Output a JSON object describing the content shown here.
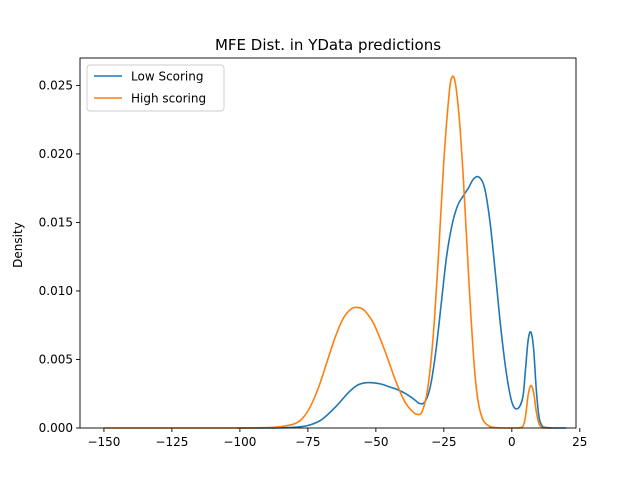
{
  "chart_data": {
    "type": "line",
    "title": "MFE Dist. in YData predictions",
    "xlabel": "",
    "ylabel": "Density",
    "xlim": [
      -158.8,
      23.6
    ],
    "ylim": [
      0.0,
      0.027
    ],
    "xticks": [
      -150,
      -125,
      -100,
      -75,
      -50,
      -25,
      0,
      25
    ],
    "xtick_labels": [
      "−150",
      "−125",
      "−100",
      "−75",
      "−50",
      "−25",
      "0",
      "25"
    ],
    "yticks": [
      0.0,
      0.005,
      0.01,
      0.015,
      0.02,
      0.025
    ],
    "ytick_labels": [
      "0.000",
      "0.005",
      "0.010",
      "0.015",
      "0.020",
      "0.025"
    ],
    "grid": false,
    "legend_position": "top-left",
    "series": [
      {
        "name": "Low Scoring",
        "color": "#1f77b4",
        "x": [
          -101,
          -95,
          -90,
          -85,
          -80,
          -75,
          -70,
          -65,
          -60,
          -57,
          -54,
          -51,
          -48,
          -45,
          -42,
          -39,
          -36,
          -34,
          -32,
          -30,
          -28,
          -26,
          -24,
          -22,
          -20,
          -18,
          -16,
          -14,
          -12,
          -10,
          -8,
          -6,
          -4,
          -2,
          0,
          2,
          4,
          5,
          6,
          7,
          8,
          9,
          10,
          11,
          12,
          15,
          20
        ],
        "y": [
          0.0,
          0.0,
          0.0,
          1e-05,
          5e-05,
          0.00018,
          0.0006,
          0.0015,
          0.0026,
          0.0031,
          0.0033,
          0.0033,
          0.0032,
          0.003,
          0.0028,
          0.0025,
          0.0021,
          0.0018,
          0.0019,
          0.003,
          0.0055,
          0.009,
          0.0125,
          0.0148,
          0.0162,
          0.0169,
          0.0175,
          0.0182,
          0.0183,
          0.0175,
          0.015,
          0.0112,
          0.0072,
          0.004,
          0.0019,
          0.0014,
          0.0022,
          0.0042,
          0.0064,
          0.007,
          0.0058,
          0.0028,
          0.0008,
          0.0002,
          5e-05,
          0.0,
          0.0
        ]
      },
      {
        "name": "High scoring",
        "color": "#ff7f0e",
        "x": [
          -150,
          -140,
          -130,
          -120,
          -110,
          -100,
          -95,
          -90,
          -85,
          -80,
          -77,
          -74,
          -71,
          -68,
          -65,
          -62,
          -59,
          -57,
          -55,
          -53,
          -51,
          -49,
          -47,
          -45,
          -43,
          -41,
          -39,
          -37,
          -35,
          -33,
          -31,
          -29,
          -27,
          -25,
          -23,
          -22,
          -21,
          -20,
          -19,
          -18,
          -17,
          -16,
          -15,
          -14,
          -13,
          -12,
          -11,
          -10,
          -8,
          -6,
          -4,
          -2,
          0,
          2,
          4,
          5,
          6,
          7,
          8,
          9,
          10,
          11,
          12,
          15
        ],
        "y": [
          0.0,
          0.0,
          0.0,
          0.0,
          0.0,
          0.0,
          1e-05,
          3e-05,
          0.0001,
          0.0003,
          0.0007,
          0.0016,
          0.003,
          0.0048,
          0.0066,
          0.008,
          0.0087,
          0.0088,
          0.0087,
          0.0083,
          0.0077,
          0.0068,
          0.0058,
          0.0047,
          0.0036,
          0.0026,
          0.0018,
          0.0013,
          0.001,
          0.0012,
          0.0028,
          0.0065,
          0.0125,
          0.0195,
          0.0245,
          0.0256,
          0.0254,
          0.024,
          0.0218,
          0.0188,
          0.0152,
          0.0115,
          0.008,
          0.005,
          0.0028,
          0.0015,
          0.0008,
          0.0004,
          0.0001,
          3e-05,
          0.0,
          0.0,
          0.0,
          0.0,
          0.0001,
          0.0008,
          0.0024,
          0.0031,
          0.0026,
          0.0012,
          0.0003,
          5e-05,
          0.0,
          0.0
        ]
      }
    ]
  }
}
